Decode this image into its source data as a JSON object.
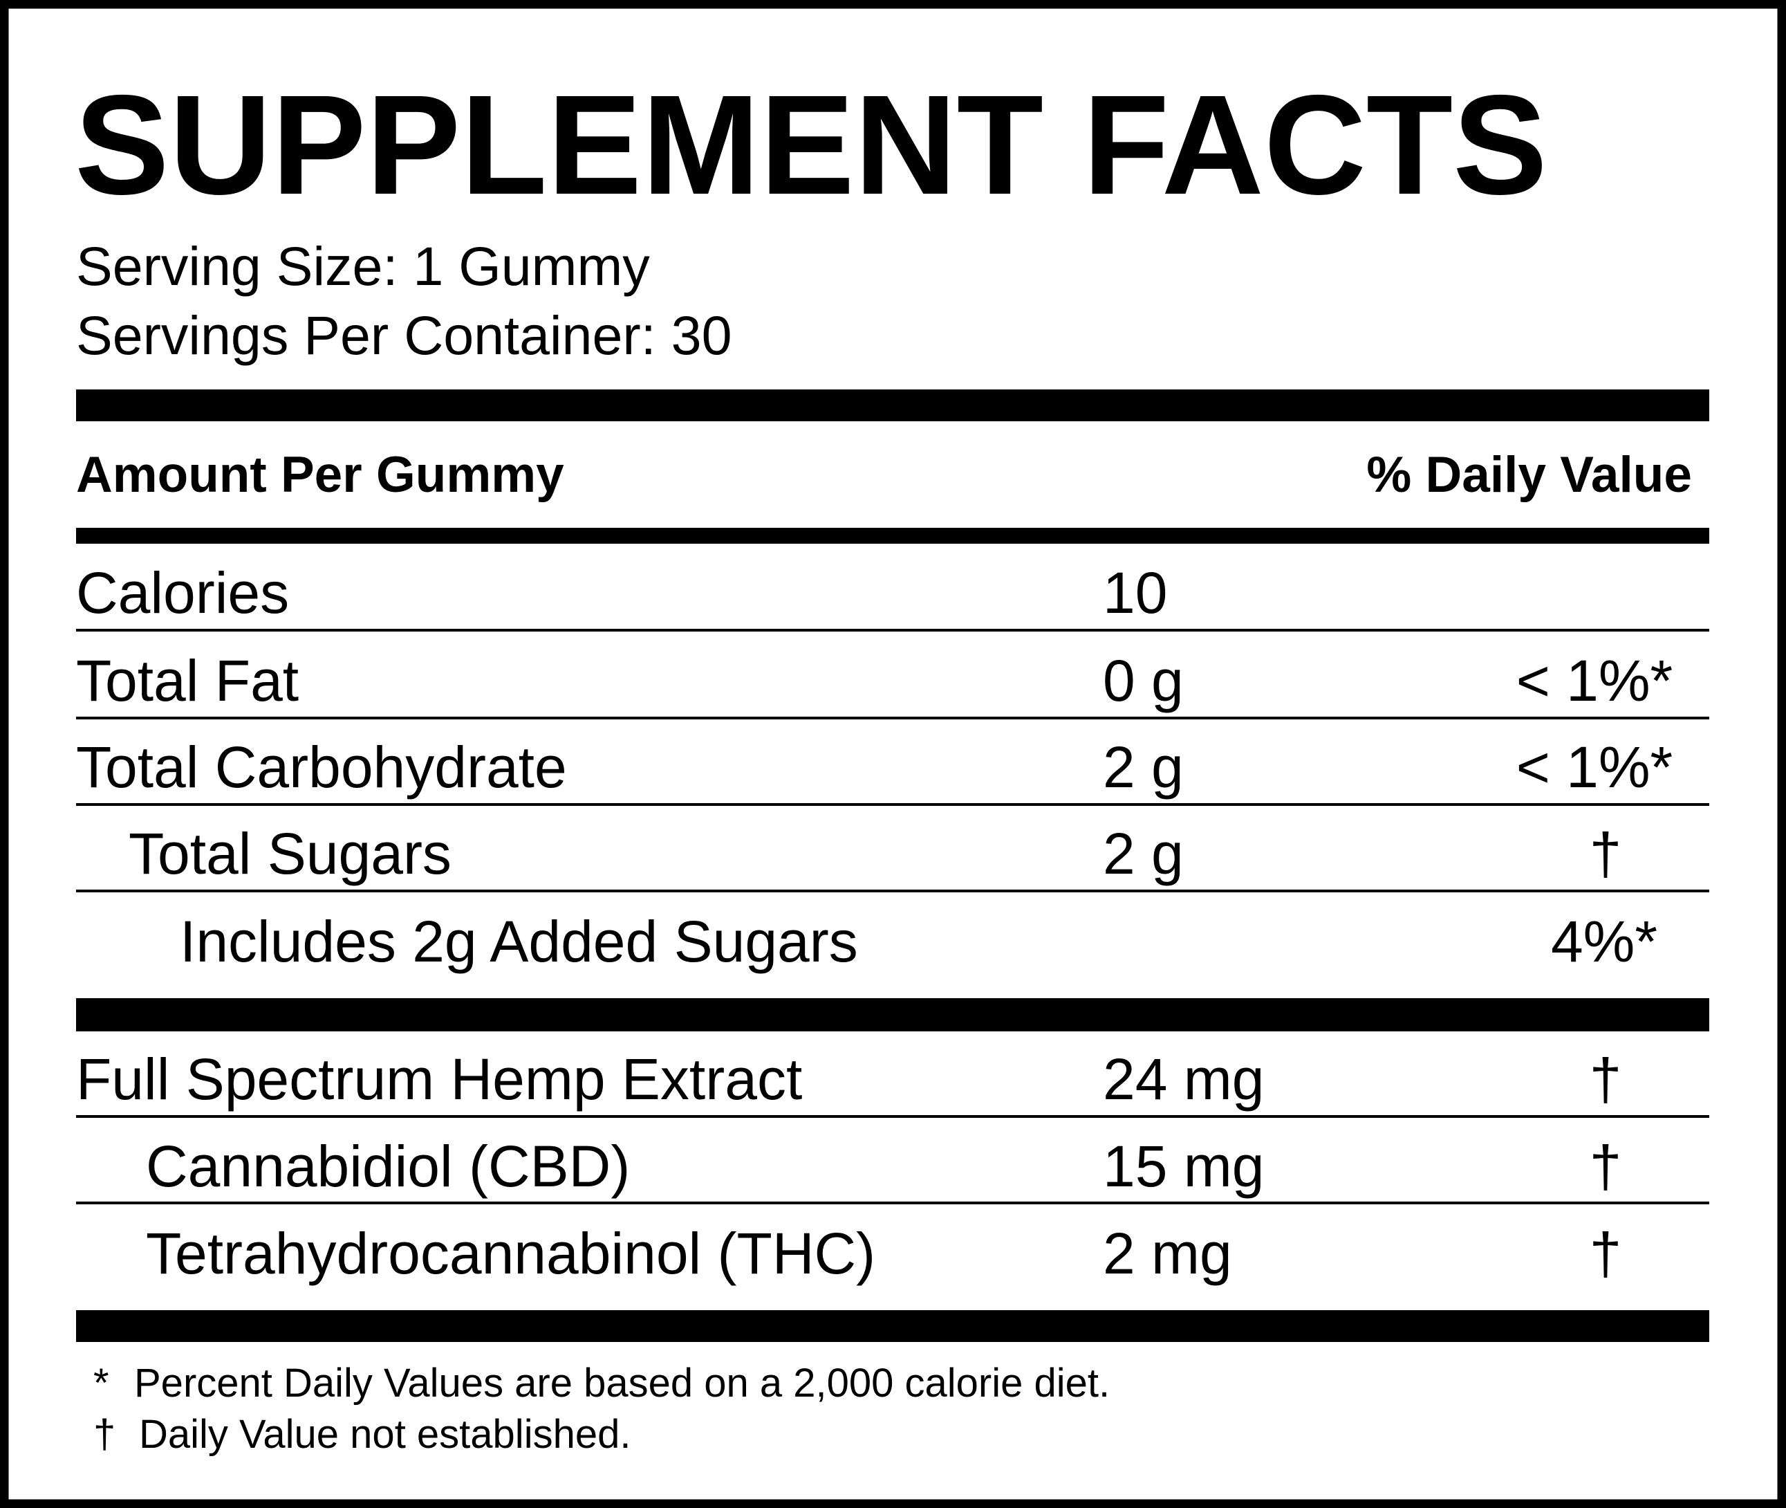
{
  "header": {
    "title": "SUPPLEMENT FACTS",
    "serving_size": "Serving Size: 1 Gummy",
    "servings_per_container": "Servings Per Container: 30"
  },
  "table": {
    "columns": [
      "Amount Per Gummy",
      "% Daily Value"
    ],
    "rows": [
      {
        "label": "Calories",
        "amount": "10"
      },
      {
        "label": "Total Fat",
        "amount": "0 g",
        "dv": "< 1%*"
      },
      {
        "label": "Total Carbohydrate",
        "amount": "2 g",
        "dv": "< 1%*"
      },
      {
        "label": "Total Sugars",
        "amount": "2 g",
        "dv": "†"
      },
      {
        "label": "Includes 2g Added Sugars",
        "dv": "4%*"
      },
      {
        "label": "Full Spectrum Hemp Extract",
        "amount": "24 mg",
        "dv": "†"
      },
      {
        "label": "Cannabidiol (CBD)",
        "amount": "15 mg",
        "dv": "†"
      },
      {
        "label": "Tetrahydrocannabinol (THC)",
        "amount": "2 mg",
        "dv": "†"
      }
    ]
  },
  "footnotes": [
    {
      "symbol": "*",
      "text": "Percent Daily Values are based on a 2,000 calorie diet."
    },
    {
      "symbol": "†",
      "text": "Daily Value not established."
    }
  ]
}
